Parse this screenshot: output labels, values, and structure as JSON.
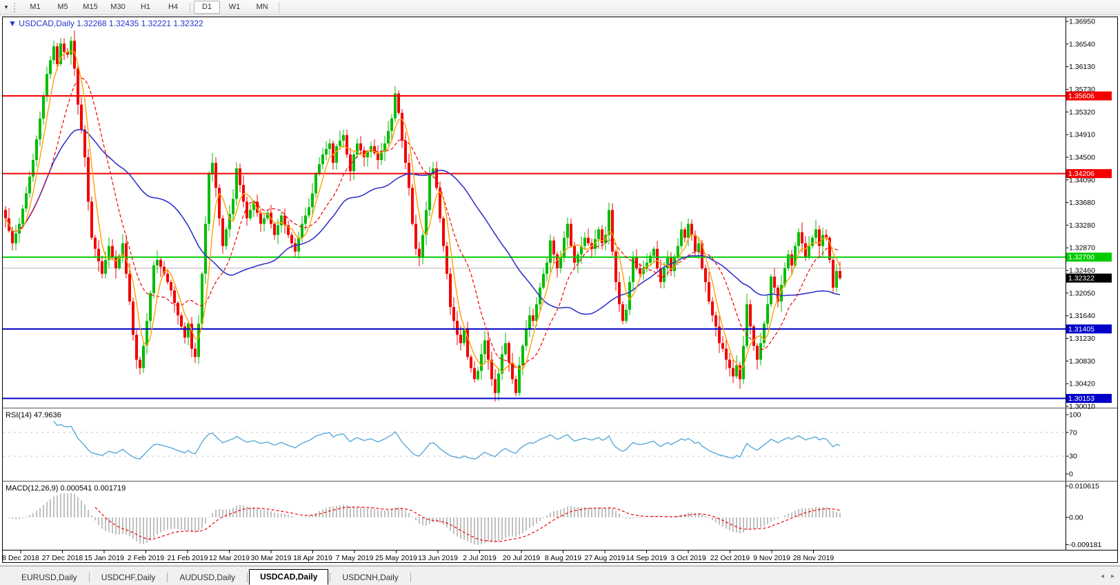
{
  "toolbar": {
    "dropdown_icon": "chart-menu-dropdown",
    "timeframes": [
      "M1",
      "M5",
      "M15",
      "M30",
      "H1",
      "H4",
      "D1",
      "W1",
      "MN"
    ],
    "active_timeframe": "D1"
  },
  "chart": {
    "title_glyph": "▼",
    "title_symbol": "USDCAD,Daily",
    "title_ohlc": "1.32268 1.32435 1.32221 1.32322",
    "title_color": "#2233cc"
  },
  "panes": {
    "rsi_label": "RSI(14) 47.9636",
    "macd_label": "MACD(12,26,9) 0.000541 0.001719"
  },
  "tabs": {
    "items": [
      "EURUSD,Daily",
      "USDCHF,Daily",
      "AUDUSD,Daily",
      "USDCAD,Daily",
      "USDCNH,Daily"
    ],
    "active": "USDCAD,Daily",
    "scroll_left_icon": "◂",
    "scroll_right_icon": "▸"
  },
  "chart_data": {
    "type": "candlestick",
    "symbol": "USDCAD",
    "timeframe": "Daily",
    "current_ohlc": {
      "open": 1.32268,
      "high": 1.32435,
      "low": 1.32221,
      "close": 1.32322
    },
    "price_range": {
      "max": 1.3695,
      "min": 1.3001
    },
    "price_axis_ticks": [
      "1.36950",
      "1.36540",
      "1.36130",
      "1.35730",
      "1.35320",
      "1.34910",
      "1.34500",
      "1.34090",
      "1.33680",
      "1.33280",
      "1.32870",
      "1.32460",
      "1.32050",
      "1.31640",
      "1.31230",
      "1.30830",
      "1.30420",
      "1.30010"
    ],
    "date_ticks": [
      "8 Dec 2018",
      "27 Dec 2018",
      "15 Jan 2019",
      "2 Feb 2019",
      "21 Feb 2019",
      "12 Mar 2019",
      "30 Mar 2019",
      "18 Apr 2019",
      "7 May 2019",
      "25 May 2019",
      "13 Jun 2019",
      "2 Jul 2019",
      "20 Jul 2019",
      "8 Aug 2019",
      "27 Aug 2019",
      "14 Sep 2019",
      "3 Oct 2019",
      "22 Oct 2019",
      "9 Nov 2019",
      "28 Nov 2019"
    ],
    "levels": [
      {
        "price": 1.35606,
        "label": "1.35606",
        "color": "#f20000",
        "width": 2
      },
      {
        "price": 1.34206,
        "label": "1.34206",
        "color": "#f20000",
        "width": 2
      },
      {
        "price": 1.327,
        "label": "1.32700",
        "color": "#00cc00",
        "width": 2
      },
      {
        "price": 1.31405,
        "label": "1.31405",
        "color": "#0000c8",
        "width": 2
      },
      {
        "price": 1.30153,
        "label": "1.30153",
        "color": "#0000c8",
        "width": 2
      }
    ],
    "gray_line": {
      "price": 1.325,
      "color": "#b0b0b0",
      "width": 1
    },
    "current_price_badge": {
      "value": 1.32322,
      "label": "1.32322",
      "bg": "#000000",
      "fg": "#ffffff"
    },
    "up_color": "#00bd00",
    "down_color": "#f20000",
    "indicators": {
      "moving_averages": [
        {
          "name": "MA fast",
          "period": 5,
          "color": "#ffa000",
          "style": "solid"
        },
        {
          "name": "MA medium",
          "period": 14,
          "color": "#f20000",
          "style": "dash"
        },
        {
          "name": "MA slow",
          "period": 42,
          "color": "#3333cc",
          "style": "solid"
        }
      ],
      "rsi": {
        "label": "RSI(14)",
        "period": 14,
        "current": 47.9636,
        "levels": [
          70,
          30
        ],
        "axis_ticks": [
          "100",
          "70",
          "30",
          "0"
        ],
        "color": "#4da3d6",
        "level_color": "#c8c8c8"
      },
      "macd": {
        "label": "MACD(12,26,9)",
        "fast": 12,
        "slow": 26,
        "signal": 9,
        "current_macd": 0.000541,
        "current_signal": 0.001719,
        "axis_ticks": [
          "0.010615",
          "0.00",
          "-0.009181"
        ],
        "axis_max": 0.010615,
        "axis_min": -0.009181,
        "histogram_color": "#c0c0c0",
        "signal_color": "#f20000"
      }
    },
    "candles": {
      "count": 243,
      "first_open": 1.3355,
      "close_anchors": [
        [
          0,
          1.334
        ],
        [
          2,
          1.3295
        ],
        [
          4,
          1.333
        ],
        [
          6,
          1.3385
        ],
        [
          8,
          1.3445
        ],
        [
          10,
          1.352
        ],
        [
          12,
          1.36
        ],
        [
          14,
          1.365
        ],
        [
          15,
          1.3618
        ],
        [
          16,
          1.3655
        ],
        [
          17,
          1.364
        ],
        [
          18,
          1.3635
        ],
        [
          19,
          1.366
        ],
        [
          20,
          1.361
        ],
        [
          21,
          1.3545
        ],
        [
          22,
          1.35
        ],
        [
          23,
          1.345
        ],
        [
          24,
          1.337
        ],
        [
          25,
          1.3305
        ],
        [
          26,
          1.3285
        ],
        [
          28,
          1.324
        ],
        [
          30,
          1.329
        ],
        [
          32,
          1.325
        ],
        [
          34,
          1.3295
        ],
        [
          35,
          1.324
        ],
        [
          36,
          1.319
        ],
        [
          37,
          1.313
        ],
        [
          38,
          1.3085
        ],
        [
          39,
          1.307
        ],
        [
          40,
          1.311
        ],
        [
          41,
          1.3155
        ],
        [
          42,
          1.3205
        ],
        [
          43,
          1.3255
        ],
        [
          44,
          1.3265
        ],
        [
          46,
          1.324
        ],
        [
          48,
          1.321
        ],
        [
          50,
          1.3165
        ],
        [
          52,
          1.3125
        ],
        [
          53,
          1.315
        ],
        [
          54,
          1.3105
        ],
        [
          55,
          1.309
        ],
        [
          56,
          1.315
        ],
        [
          57,
          1.324
        ],
        [
          58,
          1.333
        ],
        [
          59,
          1.342
        ],
        [
          60,
          1.344
        ],
        [
          61,
          1.3395
        ],
        [
          62,
          1.334
        ],
        [
          63,
          1.329
        ],
        [
          64,
          1.332
        ],
        [
          66,
          1.3375
        ],
        [
          67,
          1.343
        ],
        [
          68,
          1.34
        ],
        [
          70,
          1.334
        ],
        [
          72,
          1.337
        ],
        [
          74,
          1.333
        ],
        [
          76,
          1.335
        ],
        [
          78,
          1.331
        ],
        [
          80,
          1.3345
        ],
        [
          82,
          1.331
        ],
        [
          84,
          1.328
        ],
        [
          86,
          1.333
        ],
        [
          88,
          1.336
        ],
        [
          89,
          1.3385
        ],
        [
          90,
          1.342
        ],
        [
          92,
          1.3455
        ],
        [
          94,
          1.3475
        ],
        [
          95,
          1.344
        ],
        [
          96,
          1.347
        ],
        [
          98,
          1.349
        ],
        [
          99,
          1.3455
        ],
        [
          100,
          1.3425
        ],
        [
          101,
          1.3455
        ],
        [
          102,
          1.3475
        ],
        [
          104,
          1.345
        ],
        [
          106,
          1.347
        ],
        [
          108,
          1.3445
        ],
        [
          110,
          1.3475
        ],
        [
          112,
          1.352
        ],
        [
          113,
          1.3565
        ],
        [
          114,
          1.353
        ],
        [
          115,
          1.348
        ],
        [
          116,
          1.344
        ],
        [
          117,
          1.3395
        ],
        [
          118,
          1.333
        ],
        [
          119,
          1.3285
        ],
        [
          120,
          1.327
        ],
        [
          121,
          1.331
        ],
        [
          122,
          1.3355
        ],
        [
          123,
          1.342
        ],
        [
          124,
          1.343
        ],
        [
          125,
          1.3395
        ],
        [
          126,
          1.334
        ],
        [
          127,
          1.329
        ],
        [
          128,
          1.324
        ],
        [
          129,
          1.318
        ],
        [
          130,
          1.3155
        ],
        [
          131,
          1.313
        ],
        [
          132,
          1.3115
        ],
        [
          133,
          1.314
        ],
        [
          134,
          1.309
        ],
        [
          135,
          1.307
        ],
        [
          136,
          1.305
        ],
        [
          137,
          1.3065
        ],
        [
          138,
          1.3095
        ],
        [
          139,
          1.312
        ],
        [
          140,
          1.3085
        ],
        [
          141,
          1.305
        ],
        [
          142,
          1.3025
        ],
        [
          143,
          1.306
        ],
        [
          144,
          1.3095
        ],
        [
          145,
          1.3115
        ],
        [
          146,
          1.308
        ],
        [
          147,
          1.305
        ],
        [
          148,
          1.3025
        ],
        [
          149,
          1.3075
        ],
        [
          150,
          1.311
        ],
        [
          151,
          1.314
        ],
        [
          152,
          1.3165
        ],
        [
          153,
          1.3155
        ],
        [
          154,
          1.3185
        ],
        [
          155,
          1.3215
        ],
        [
          156,
          1.324
        ],
        [
          157,
          1.326
        ],
        [
          158,
          1.33
        ],
        [
          159,
          1.3275
        ],
        [
          160,
          1.325
        ],
        [
          161,
          1.327
        ],
        [
          162,
          1.3305
        ],
        [
          163,
          1.333
        ],
        [
          164,
          1.329
        ],
        [
          165,
          1.326
        ],
        [
          166,
          1.3275
        ],
        [
          168,
          1.3305
        ],
        [
          170,
          1.3285
        ],
        [
          172,
          1.332
        ],
        [
          173,
          1.3295
        ],
        [
          174,
          1.331
        ],
        [
          175,
          1.3355
        ],
        [
          176,
          1.328
        ],
        [
          177,
          1.3225
        ],
        [
          178,
          1.3185
        ],
        [
          179,
          1.3155
        ],
        [
          180,
          1.3175
        ],
        [
          181,
          1.3225
        ],
        [
          182,
          1.327
        ],
        [
          183,
          1.325
        ],
        [
          184,
          1.324
        ],
        [
          186,
          1.326
        ],
        [
          188,
          1.3285
        ],
        [
          189,
          1.325
        ],
        [
          190,
          1.3225
        ],
        [
          191,
          1.325
        ],
        [
          192,
          1.327
        ],
        [
          193,
          1.3245
        ],
        [
          194,
          1.327
        ],
        [
          195,
          1.329
        ],
        [
          196,
          1.332
        ],
        [
          197,
          1.3305
        ],
        [
          198,
          1.333
        ],
        [
          199,
          1.331
        ],
        [
          200,
          1.328
        ],
        [
          201,
          1.3295
        ],
        [
          202,
          1.325
        ],
        [
          203,
          1.3225
        ],
        [
          204,
          1.319
        ],
        [
          205,
          1.3165
        ],
        [
          206,
          1.3145
        ],
        [
          207,
          1.3115
        ],
        [
          208,
          1.3105
        ],
        [
          209,
          1.3085
        ],
        [
          210,
          1.307
        ],
        [
          211,
          1.3055
        ],
        [
          212,
          1.3075
        ],
        [
          213,
          1.305
        ],
        [
          214,
          1.311
        ],
        [
          215,
          1.3185
        ],
        [
          216,
          1.3145
        ],
        [
          217,
          1.311
        ],
        [
          218,
          1.3085
        ],
        [
          219,
          1.3115
        ],
        [
          220,
          1.315
        ],
        [
          221,
          1.3185
        ],
        [
          222,
          1.3235
        ],
        [
          223,
          1.3215
        ],
        [
          224,
          1.319
        ],
        [
          225,
          1.322
        ],
        [
          226,
          1.325
        ],
        [
          227,
          1.3275
        ],
        [
          228,
          1.3255
        ],
        [
          229,
          1.329
        ],
        [
          230,
          1.3315
        ],
        [
          231,
          1.3295
        ],
        [
          232,
          1.327
        ],
        [
          233,
          1.329
        ],
        [
          234,
          1.3305
        ],
        [
          235,
          1.332
        ],
        [
          236,
          1.329
        ],
        [
          237,
          1.331
        ],
        [
          238,
          1.3305
        ],
        [
          239,
          1.3265
        ],
        [
          240,
          1.3215
        ],
        [
          241,
          1.3245
        ],
        [
          242,
          1.3232
        ]
      ]
    }
  }
}
